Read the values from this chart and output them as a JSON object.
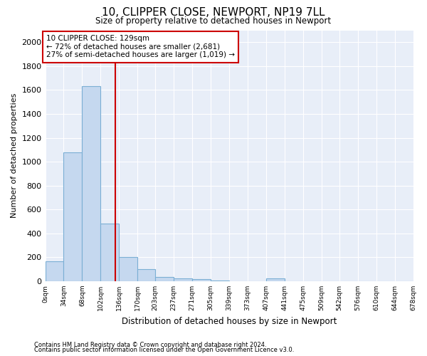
{
  "title": "10, CLIPPER CLOSE, NEWPORT, NP19 7LL",
  "subtitle": "Size of property relative to detached houses in Newport",
  "xlabel": "Distribution of detached houses by size in Newport",
  "ylabel": "Number of detached properties",
  "footnote1": "Contains HM Land Registry data © Crown copyright and database right 2024.",
  "footnote2": "Contains public sector information licensed under the Open Government Licence v3.0.",
  "annotation_line1": "10 CLIPPER CLOSE: 129sqm",
  "annotation_line2": "← 72% of detached houses are smaller (2,681)",
  "annotation_line3": "27% of semi-detached houses are larger (1,019) →",
  "property_size": 129,
  "bar_color": "#c5d8ef",
  "bar_edge_color": "#7bafd4",
  "vline_color": "#cc0000",
  "annotation_box_color": "#cc0000",
  "plot_bg_color": "#e8eef8",
  "fig_bg_color": "#ffffff",
  "grid_color": "#ffffff",
  "ylim": [
    0,
    2100
  ],
  "yticks": [
    0,
    200,
    400,
    600,
    800,
    1000,
    1200,
    1400,
    1600,
    1800,
    2000
  ],
  "bins": [
    0,
    34,
    68,
    102,
    136,
    170,
    203,
    237,
    271,
    305,
    339,
    373,
    407,
    441,
    475,
    509,
    542,
    576,
    610,
    644,
    678
  ],
  "bin_labels": [
    "0sqm",
    "34sqm",
    "68sqm",
    "102sqm",
    "136sqm",
    "170sqm",
    "203sqm",
    "237sqm",
    "271sqm",
    "305sqm",
    "339sqm",
    "373sqm",
    "407sqm",
    "441sqm",
    "475sqm",
    "509sqm",
    "542sqm",
    "576sqm",
    "610sqm",
    "644sqm",
    "678sqm"
  ],
  "values": [
    165,
    1080,
    1630,
    480,
    200,
    100,
    35,
    25,
    20,
    5,
    2,
    2,
    25,
    0,
    0,
    0,
    0,
    0,
    0,
    0
  ]
}
